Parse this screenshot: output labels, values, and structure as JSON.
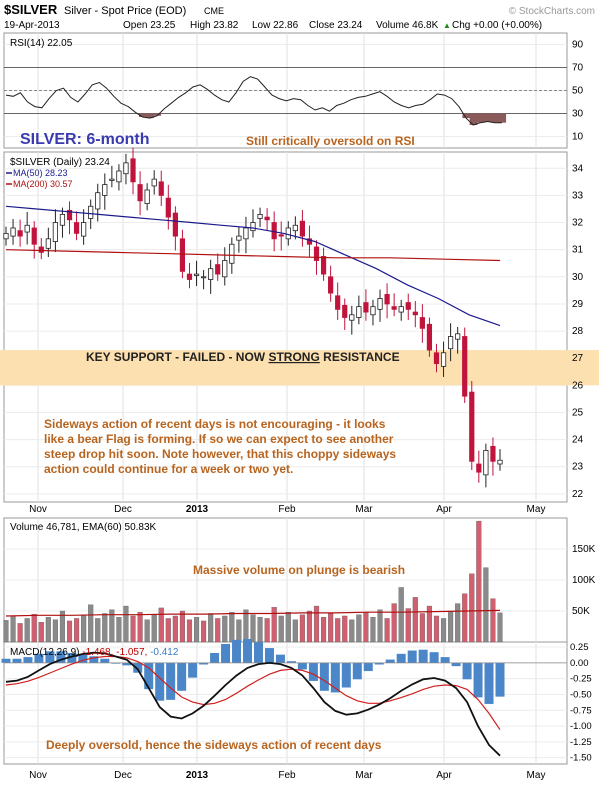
{
  "header": {
    "symbol": "$SILVER",
    "desc": "Silver - Spot Price (EOD)",
    "exchange": "CME",
    "watermark": "© StockCharts.com",
    "date": "19-Apr-2013",
    "open": "Open 23.25",
    "high": "High 23.82",
    "low": "Low 22.86",
    "close": "Close 23.24",
    "volume": "Volume 46.8K",
    "chg": "Chg +0.00 (+0.00%)",
    "up_triangle": "▲"
  },
  "colors": {
    "up": "#222222",
    "down": "#c0143c",
    "ma50": "#1a1a8c",
    "ma200": "#b01010",
    "annot": "#b8641e",
    "title": "#3a3ab0",
    "band": "#fde0b0",
    "rsi_fill": "#8b5a5a",
    "vol_gray": "#8a8a8a",
    "vol_red": "#d06070",
    "macd_hist": "#4a86c8"
  },
  "rsi": {
    "label": "RSI(14) 22.05",
    "ticks": [
      "90",
      "70",
      "50",
      "30",
      "10"
    ],
    "values": [
      46,
      45,
      48,
      40,
      36,
      35,
      43,
      50,
      52,
      44,
      40,
      47,
      55,
      57,
      52,
      45,
      39,
      36,
      31,
      27,
      26,
      28,
      34,
      39,
      44,
      48,
      53,
      55,
      51,
      46,
      42,
      40,
      48,
      58,
      62,
      60,
      53,
      46,
      43,
      41,
      43,
      42,
      37,
      33,
      35,
      32,
      37,
      39,
      42,
      44,
      45,
      47,
      49,
      45,
      40,
      37,
      35,
      37,
      38,
      42,
      47,
      46,
      43,
      36,
      26,
      20,
      22,
      23,
      22,
      22
    ]
  },
  "price": {
    "label": "$SILVER (Daily) 23.24",
    "ma50_label": "MA(50) 28.23",
    "ma200_label": "MA(200) 30.57",
    "ticks": [
      "34",
      "33",
      "32",
      "31",
      "30",
      "29",
      "28",
      "27",
      "26",
      "25",
      "24",
      "23",
      "22"
    ],
    "closes": [
      31.6,
      31.8,
      31.5,
      31.9,
      31.2,
      30.9,
      31.4,
      32.0,
      32.3,
      32.1,
      31.6,
      32.0,
      32.6,
      33.1,
      33.4,
      33.6,
      33.9,
      34.2,
      33.5,
      32.8,
      33.2,
      33.6,
      33.0,
      32.2,
      31.5,
      30.2,
      29.9,
      30.1,
      30.0,
      30.3,
      30.1,
      30.6,
      31.2,
      31.5,
      31.8,
      32.0,
      32.3,
      32.1,
      31.4,
      31.5,
      31.8,
      31.9,
      31.5,
      31.2,
      30.6,
      30.1,
      29.4,
      28.8,
      28.5,
      28.6,
      28.9,
      28.7,
      28.9,
      29.2,
      29.0,
      28.8,
      28.9,
      28.8,
      28.6,
      28.1,
      27.3,
      26.8,
      27.2,
      27.8,
      27.9,
      25.6,
      23.2,
      22.8,
      23.6,
      23.2,
      23.24
    ],
    "ma50": [
      32.6,
      32.5,
      32.4,
      32.3,
      32.2,
      32.1,
      32.0,
      31.9,
      31.8,
      31.6,
      31.3,
      30.8,
      30.3,
      29.7,
      29.2,
      28.6,
      28.2
    ],
    "ma200": [
      31.0,
      30.95,
      30.9,
      30.85,
      30.8,
      30.75,
      30.7,
      30.7,
      30.65,
      30.6
    ],
    "title": "SILVER: 6-month",
    "rsi_note": "Still critically oversold on RSI",
    "band_low": 26,
    "band_high": 27.3,
    "band_label": "KEY SUPPORT - FAILED - NOW ",
    "band_label_strong": "STRONG",
    "band_label_end": " RESISTANCE",
    "comment_lines": [
      "Sideways action of recent days is not encouraging - it looks",
      "like a bear Flag is forming. If so we can expect to see another",
      "steep drop hit soon. Note however, that this choppy sideways",
      "action could continue for a week or two yet."
    ]
  },
  "months": [
    "Nov",
    "Dec",
    "2013",
    "Feb",
    "Mar",
    "Apr",
    "May"
  ],
  "volume": {
    "label": "Volume 46,781, EMA(60) 50.83K",
    "ticks": [
      "150K",
      "100K",
      "50K"
    ],
    "note": "Massive volume on plunge is bearish",
    "values": [
      35,
      42,
      30,
      38,
      45,
      32,
      40,
      36,
      50,
      34,
      38,
      44,
      60,
      38,
      46,
      52,
      40,
      58,
      42,
      48,
      36,
      44,
      55,
      38,
      42,
      50,
      36,
      40,
      34,
      46,
      38,
      42,
      48,
      36,
      52,
      44,
      40,
      38,
      56,
      42,
      48,
      36,
      44,
      50,
      58,
      40,
      46,
      38,
      42,
      36,
      44,
      48,
      40,
      52,
      38,
      62,
      88,
      54,
      72,
      46,
      58,
      42,
      38,
      50,
      62,
      78,
      110,
      195,
      120,
      70,
      47
    ],
    "ema": [
      42,
      43,
      43,
      44,
      44,
      45,
      45,
      46,
      46,
      47,
      47,
      48,
      48,
      49,
      50,
      51
    ]
  },
  "macd": {
    "label": "MACD(12,26,9) -1.468, -1.057, -0.412",
    "label_a": "MACD(12,26,9) ",
    "label_b": "-1.468, -1.057,",
    "label_c": " -0.412",
    "ticks": [
      "0.25",
      "0.00",
      "-0.25",
      "-0.50",
      "-0.75",
      "-1.00",
      "-1.25",
      "-1.50"
    ],
    "note": "Deeply oversold, hence the sideways action of recent days",
    "line": [
      -0.3,
      -0.28,
      -0.22,
      -0.12,
      -0.02,
      0.05,
      0.1,
      0.14,
      0.16,
      0.15,
      0.1,
      0.05,
      -0.1,
      -0.4,
      -0.7,
      -0.85,
      -0.88,
      -0.8,
      -0.68,
      -0.52,
      -0.35,
      -0.2,
      -0.08,
      -0.02,
      0.0,
      -0.02,
      -0.08,
      -0.2,
      -0.4,
      -0.62,
      -0.76,
      -0.82,
      -0.8,
      -0.74,
      -0.66,
      -0.56,
      -0.44,
      -0.34,
      -0.26,
      -0.24,
      -0.28,
      -0.4,
      -0.62,
      -1.0,
      -1.3,
      -1.468
    ],
    "signal": [
      -0.35,
      -0.33,
      -0.29,
      -0.23,
      -0.16,
      -0.09,
      -0.02,
      0.04,
      0.08,
      0.1,
      0.1,
      0.08,
      0.02,
      -0.08,
      -0.24,
      -0.4,
      -0.54,
      -0.62,
      -0.66,
      -0.64,
      -0.58,
      -0.48,
      -0.37,
      -0.27,
      -0.18,
      -0.12,
      -0.1,
      -0.12,
      -0.18,
      -0.28,
      -0.4,
      -0.52,
      -0.6,
      -0.64,
      -0.64,
      -0.6,
      -0.55,
      -0.49,
      -0.42,
      -0.37,
      -0.35,
      -0.36,
      -0.42,
      -0.58,
      -0.8,
      -1.057
    ]
  },
  "chart_data": [
    {
      "type": "line",
      "panel": "RSI",
      "ylim": [
        0,
        100
      ],
      "yticks": [
        90,
        70,
        50,
        30,
        10
      ],
      "guides": [
        70,
        50,
        30
      ]
    },
    {
      "type": "candlestick",
      "panel": "price",
      "x_ticks": [
        "Nov",
        "Dec",
        "2013",
        "Feb",
        "Mar",
        "Apr",
        "May"
      ],
      "ylim": [
        21.7,
        34.6
      ],
      "last_close": 23.24,
      "series": [
        {
          "name": "$SILVER (Daily) 23.24"
        },
        {
          "name": "MA(50) 28.23"
        },
        {
          "name": "MA(200) 30.57"
        }
      ]
    },
    {
      "type": "bar",
      "panel": "volume",
      "ylim": [
        0,
        200
      ],
      "yticks": [
        150,
        100,
        50
      ],
      "unit": "K"
    },
    {
      "type": "line",
      "panel": "MACD",
      "ylim": [
        -1.6,
        0.33
      ],
      "yticks": [
        0.25,
        0,
        -0.25,
        -0.5,
        -0.75,
        -1.0,
        -1.25,
        -1.5
      ]
    }
  ]
}
